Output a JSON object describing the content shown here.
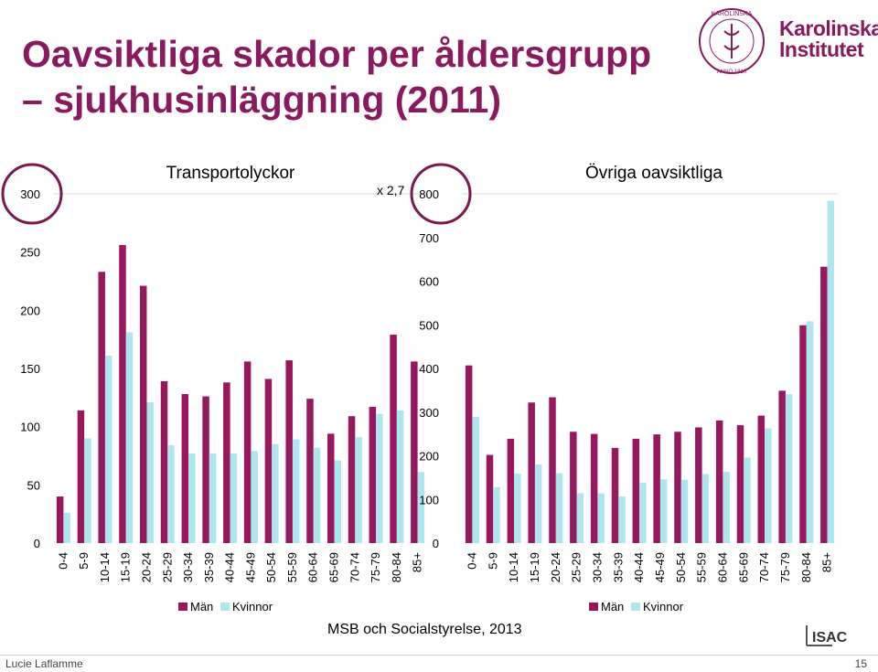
{
  "slide": {
    "title_line1": "Oavsiktliga skador per åldersgrupp",
    "title_line2": "– sjukhusinläggning (2011)",
    "logo_line1": "Karolinska",
    "logo_line2": "Institutet",
    "logo_seal_text": "KAROLINSKA INSTITUTET · ANNO 1810",
    "multiplier_label": "x 2,7",
    "source": "MSB och Socialstyrelse, 2013",
    "author": "Lucie Laflamme",
    "page_number": "15",
    "isac_logo_text": "ISAC"
  },
  "colors": {
    "title": "#8a1a5e",
    "men": "#98185f",
    "women": "#aee6ee",
    "circle": "#7a1850"
  },
  "chart_data": [
    {
      "type": "bar",
      "title": "Transportolyckor",
      "categories": [
        "0-4",
        "5-9",
        "10-14",
        "15-19",
        "20-24",
        "25-29",
        "30-34",
        "35-39",
        "40-44",
        "45-49",
        "50-54",
        "55-59",
        "60-64",
        "65-69",
        "70-74",
        "75-79",
        "80-84",
        "85+"
      ],
      "series": [
        {
          "name": "Män",
          "values": [
            40,
            114,
            233,
            256,
            221,
            139,
            128,
            126,
            138,
            156,
            141,
            157,
            124,
            94,
            109,
            117,
            179,
            156
          ]
        },
        {
          "name": "Kvinnor",
          "values": [
            26,
            90,
            161,
            181,
            121,
            84,
            77,
            77,
            77,
            79,
            85,
            89,
            82,
            71,
            91,
            111,
            114,
            61
          ]
        }
      ],
      "ylim": [
        0,
        300
      ],
      "yticks": [
        0,
        50,
        100,
        150,
        200,
        250,
        300
      ],
      "grid": false,
      "legend": "bottom"
    },
    {
      "type": "bar",
      "title": "Övriga oavsiktliga",
      "categories": [
        "0-4",
        "5-9",
        "10-14",
        "15-19",
        "20-24",
        "25-29",
        "30-34",
        "35-39",
        "40-44",
        "45-49",
        "50-54",
        "55-59",
        "60-64",
        "65-69",
        "70-74",
        "75-79",
        "80-84",
        "85+"
      ],
      "series": [
        {
          "name": "Män",
          "values": [
            407,
            202,
            239,
            322,
            334,
            255,
            250,
            218,
            239,
            249,
            255,
            265,
            281,
            270,
            292,
            349,
            499,
            633
          ]
        },
        {
          "name": "Kvinnor",
          "values": [
            289,
            128,
            159,
            180,
            160,
            114,
            114,
            107,
            138,
            146,
            145,
            158,
            163,
            196,
            263,
            341,
            508,
            784
          ]
        }
      ],
      "ylim": [
        0,
        800
      ],
      "yticks": [
        0,
        100,
        200,
        300,
        400,
        500,
        600,
        700,
        800
      ],
      "grid": false,
      "legend": "bottom"
    }
  ]
}
